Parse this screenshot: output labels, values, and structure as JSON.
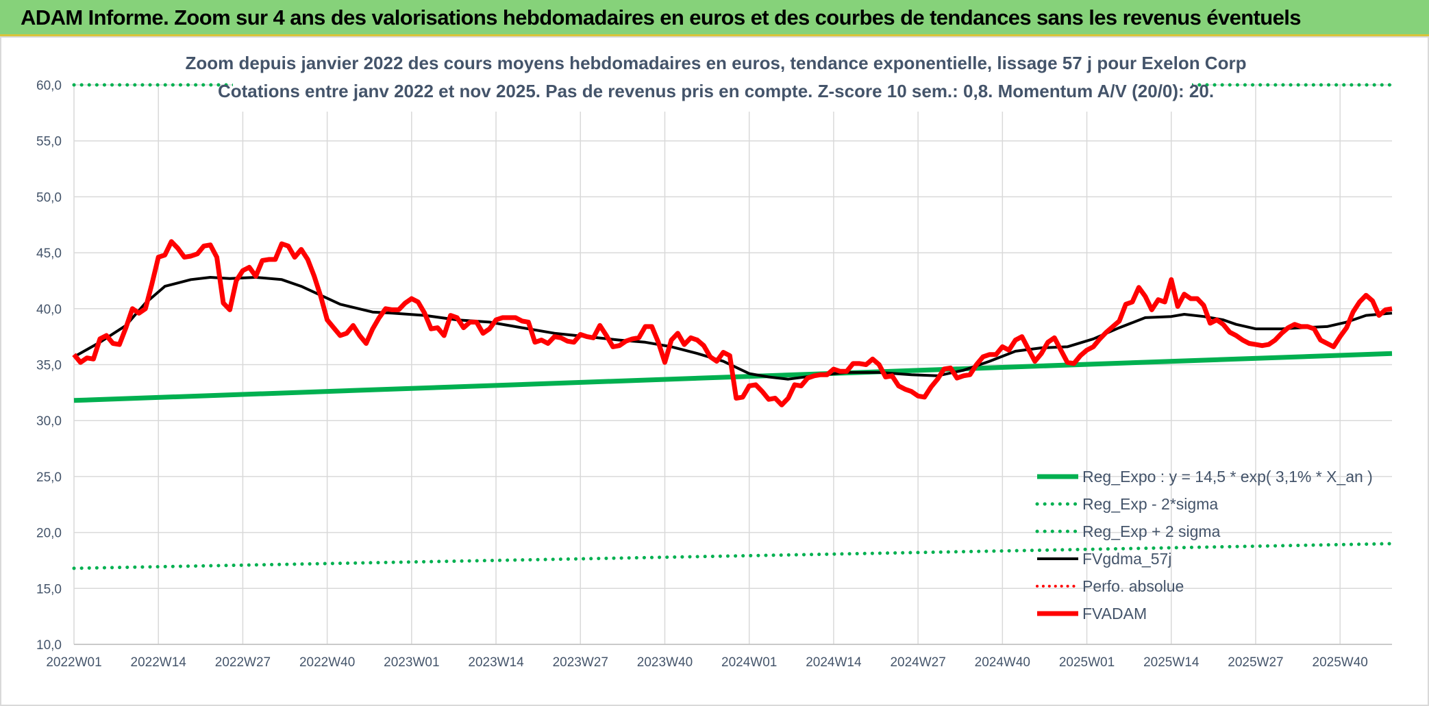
{
  "banner": {
    "title": "ADAM Informe. Zoom sur 4 ans des valorisations hebdomadaires en euros et des courbes de tendances sans les revenus éventuels",
    "bg_color": "#86d27a"
  },
  "chart_data": {
    "type": "line",
    "title": [
      "Zoom depuis janvier 2022 des cours moyens hebdomadaires en euros, tendance exponentielle, lissage 57 j pour Exelon Corp",
      "Cotations entre janv 2022 et nov 2025. Pas de revenus pris en compte. Z-score 10 sem.: 0,8. Momentum A/V (20/0): 20."
    ],
    "xlabel": "",
    "ylabel": "",
    "ylim": [
      10,
      60
    ],
    "yticks": [
      "10,0",
      "15,0",
      "20,0",
      "25,0",
      "30,0",
      "35,0",
      "40,0",
      "45,0",
      "50,0",
      "55,0",
      "60,0"
    ],
    "xlim": [
      1,
      204
    ],
    "xticks": [
      {
        "x": 1,
        "label": "2022W01"
      },
      {
        "x": 14,
        "label": "2022W14"
      },
      {
        "x": 27,
        "label": "2022W27"
      },
      {
        "x": 40,
        "label": "2022W40"
      },
      {
        "x": 53,
        "label": "2023W01"
      },
      {
        "x": 66,
        "label": "2023W14"
      },
      {
        "x": 79,
        "label": "2023W27"
      },
      {
        "x": 92,
        "label": "2023W40"
      },
      {
        "x": 105,
        "label": "2024W01"
      },
      {
        "x": 118,
        "label": "2024W14"
      },
      {
        "x": 131,
        "label": "2024W27"
      },
      {
        "x": 144,
        "label": "2024W40"
      },
      {
        "x": 157,
        "label": "2025W01"
      },
      {
        "x": 170,
        "label": "2025W14"
      },
      {
        "x": 183,
        "label": "2025W27"
      },
      {
        "x": 196,
        "label": "2025W40"
      }
    ],
    "grid": true,
    "legend_position": "bottom-right",
    "series": [
      {
        "name": "Reg_Expo : y = 14,5 * exp( 3,1% *  X_an )",
        "color": "#00b050",
        "style": "solid",
        "width": 7,
        "points": [
          [
            1,
            31.8
          ],
          [
            204,
            36.0
          ]
        ]
      },
      {
        "name": "Reg_Exp - 2*sigma",
        "color": "#00b050",
        "style": "dotted",
        "width": 5,
        "points": [
          [
            1,
            16.8
          ],
          [
            204,
            19.0
          ]
        ]
      },
      {
        "name": "Reg_Exp + 2 sigma",
        "color": "#00b050",
        "style": "dotted",
        "width": 5,
        "points": [
          [
            1,
            60.0
          ],
          [
            204,
            60.0
          ]
        ]
      },
      {
        "name": "FVgdma_57j",
        "color": "#000000",
        "style": "solid",
        "width": 4,
        "points": [
          [
            1,
            35.7
          ],
          [
            5,
            37.0
          ],
          [
            9,
            38.5
          ],
          [
            12,
            40.5
          ],
          [
            15,
            42.0
          ],
          [
            19,
            42.6
          ],
          [
            22,
            42.8
          ],
          [
            25,
            42.7
          ],
          [
            29,
            42.8
          ],
          [
            33,
            42.6
          ],
          [
            36,
            42.0
          ],
          [
            39,
            41.2
          ],
          [
            42,
            40.4
          ],
          [
            47,
            39.7
          ],
          [
            50,
            39.6
          ],
          [
            55,
            39.4
          ],
          [
            60,
            39.0
          ],
          [
            65,
            38.8
          ],
          [
            70,
            38.3
          ],
          [
            75,
            37.8
          ],
          [
            80,
            37.5
          ],
          [
            85,
            37.2
          ],
          [
            89,
            37.0
          ],
          [
            93,
            36.6
          ],
          [
            97,
            36.0
          ],
          [
            101,
            35.3
          ],
          [
            105,
            34.2
          ],
          [
            108,
            33.9
          ],
          [
            111,
            33.7
          ],
          [
            115,
            34.0
          ],
          [
            120,
            34.3
          ],
          [
            125,
            34.3
          ],
          [
            130,
            34.1
          ],
          [
            134,
            34.0
          ],
          [
            138,
            34.5
          ],
          [
            142,
            35.3
          ],
          [
            146,
            36.2
          ],
          [
            150,
            36.5
          ],
          [
            154,
            36.6
          ],
          [
            158,
            37.3
          ],
          [
            162,
            38.3
          ],
          [
            166,
            39.2
          ],
          [
            170,
            39.3
          ],
          [
            172,
            39.5
          ],
          [
            175,
            39.3
          ],
          [
            178,
            39.0
          ],
          [
            180,
            38.6
          ],
          [
            183,
            38.2
          ],
          [
            187,
            38.2
          ],
          [
            190,
            38.3
          ],
          [
            194,
            38.4
          ],
          [
            197,
            38.8
          ],
          [
            200,
            39.4
          ],
          [
            204,
            39.6
          ]
        ]
      },
      {
        "name": "Perfo. absolue",
        "color": "#ff0000",
        "style": "dotted",
        "width": 4,
        "points": []
      },
      {
        "name": "FVADAM",
        "color": "#ff0000",
        "style": "solid",
        "width": 7,
        "points": [
          [
            1,
            35.9
          ],
          [
            2,
            35.2
          ],
          [
            3,
            35.6
          ],
          [
            4,
            35.5
          ],
          [
            5,
            37.3
          ],
          [
            6,
            37.6
          ],
          [
            7,
            36.9
          ],
          [
            8,
            36.8
          ],
          [
            9,
            38.3
          ],
          [
            10,
            40.0
          ],
          [
            11,
            39.6
          ],
          [
            12,
            40.0
          ],
          [
            13,
            42.2
          ],
          [
            14,
            44.6
          ],
          [
            15,
            44.8
          ],
          [
            16,
            46.0
          ],
          [
            17,
            45.4
          ],
          [
            18,
            44.6
          ],
          [
            19,
            44.7
          ],
          [
            20,
            44.9
          ],
          [
            21,
            45.6
          ],
          [
            22,
            45.7
          ],
          [
            23,
            44.6
          ],
          [
            24,
            40.5
          ],
          [
            25,
            39.9
          ],
          [
            26,
            42.5
          ],
          [
            27,
            43.4
          ],
          [
            28,
            43.7
          ],
          [
            29,
            42.9
          ],
          [
            30,
            44.3
          ],
          [
            31,
            44.4
          ],
          [
            32,
            44.4
          ],
          [
            33,
            45.8
          ],
          [
            34,
            45.6
          ],
          [
            35,
            44.6
          ],
          [
            36,
            45.3
          ],
          [
            37,
            44.4
          ],
          [
            38,
            42.9
          ],
          [
            39,
            41.1
          ],
          [
            40,
            39.0
          ],
          [
            41,
            38.3
          ],
          [
            42,
            37.6
          ],
          [
            43,
            37.8
          ],
          [
            44,
            38.5
          ],
          [
            45,
            37.6
          ],
          [
            46,
            36.9
          ],
          [
            47,
            38.2
          ],
          [
            48,
            39.2
          ],
          [
            49,
            40.0
          ],
          [
            50,
            39.9
          ],
          [
            51,
            39.9
          ],
          [
            52,
            40.5
          ],
          [
            53,
            40.9
          ],
          [
            54,
            40.6
          ],
          [
            55,
            39.6
          ],
          [
            56,
            38.2
          ],
          [
            57,
            38.3
          ],
          [
            58,
            37.6
          ],
          [
            59,
            39.4
          ],
          [
            60,
            39.2
          ],
          [
            61,
            38.3
          ],
          [
            62,
            38.8
          ],
          [
            63,
            38.8
          ],
          [
            64,
            37.8
          ],
          [
            65,
            38.2
          ],
          [
            66,
            39.0
          ],
          [
            67,
            39.2
          ],
          [
            68,
            39.2
          ],
          [
            69,
            39.2
          ],
          [
            70,
            38.9
          ],
          [
            71,
            38.8
          ],
          [
            72,
            37.0
          ],
          [
            73,
            37.2
          ],
          [
            74,
            36.9
          ],
          [
            75,
            37.5
          ],
          [
            76,
            37.4
          ],
          [
            77,
            37.1
          ],
          [
            78,
            37.0
          ],
          [
            79,
            37.7
          ],
          [
            80,
            37.5
          ],
          [
            81,
            37.4
          ],
          [
            82,
            38.5
          ],
          [
            83,
            37.6
          ],
          [
            84,
            36.6
          ],
          [
            85,
            36.7
          ],
          [
            86,
            37.1
          ],
          [
            87,
            37.3
          ],
          [
            88,
            37.4
          ],
          [
            89,
            38.4
          ],
          [
            90,
            38.4
          ],
          [
            91,
            37.0
          ],
          [
            92,
            35.2
          ],
          [
            93,
            37.2
          ],
          [
            94,
            37.8
          ],
          [
            95,
            36.8
          ],
          [
            96,
            37.4
          ],
          [
            97,
            37.2
          ],
          [
            98,
            36.7
          ],
          [
            99,
            35.7
          ],
          [
            100,
            35.3
          ],
          [
            101,
            36.1
          ],
          [
            102,
            35.8
          ],
          [
            103,
            32.0
          ],
          [
            104,
            32.1
          ],
          [
            105,
            33.1
          ],
          [
            106,
            33.2
          ],
          [
            107,
            32.6
          ],
          [
            108,
            31.9
          ],
          [
            109,
            32.0
          ],
          [
            110,
            31.4
          ],
          [
            111,
            32.0
          ],
          [
            112,
            33.2
          ],
          [
            113,
            33.1
          ],
          [
            114,
            33.8
          ],
          [
            115,
            34.0
          ],
          [
            116,
            34.1
          ],
          [
            117,
            34.1
          ],
          [
            118,
            34.6
          ],
          [
            119,
            34.4
          ],
          [
            120,
            34.4
          ],
          [
            121,
            35.1
          ],
          [
            122,
            35.1
          ],
          [
            123,
            35.0
          ],
          [
            124,
            35.5
          ],
          [
            125,
            35.0
          ],
          [
            126,
            33.9
          ],
          [
            127,
            34.0
          ],
          [
            128,
            33.1
          ],
          [
            129,
            32.8
          ],
          [
            130,
            32.6
          ],
          [
            131,
            32.2
          ],
          [
            132,
            32.1
          ],
          [
            133,
            33.0
          ],
          [
            134,
            33.7
          ],
          [
            135,
            34.6
          ],
          [
            136,
            34.7
          ],
          [
            137,
            33.8
          ],
          [
            138,
            34.0
          ],
          [
            139,
            34.1
          ],
          [
            140,
            35.0
          ],
          [
            141,
            35.7
          ],
          [
            142,
            35.9
          ],
          [
            143,
            35.9
          ],
          [
            144,
            36.6
          ],
          [
            145,
            36.3
          ],
          [
            146,
            37.2
          ],
          [
            147,
            37.5
          ],
          [
            148,
            36.4
          ],
          [
            149,
            35.3
          ],
          [
            150,
            36.0
          ],
          [
            151,
            37.0
          ],
          [
            152,
            37.4
          ],
          [
            153,
            36.3
          ],
          [
            154,
            35.2
          ],
          [
            155,
            35.1
          ],
          [
            156,
            35.8
          ],
          [
            157,
            36.3
          ],
          [
            158,
            36.6
          ],
          [
            159,
            37.3
          ],
          [
            160,
            37.9
          ],
          [
            161,
            38.4
          ],
          [
            162,
            38.9
          ],
          [
            163,
            40.4
          ],
          [
            164,
            40.6
          ],
          [
            165,
            41.9
          ],
          [
            166,
            41.1
          ],
          [
            167,
            39.9
          ],
          [
            168,
            40.8
          ],
          [
            169,
            40.6
          ],
          [
            170,
            42.6
          ],
          [
            171,
            40.2
          ],
          [
            172,
            41.3
          ],
          [
            173,
            40.9
          ],
          [
            174,
            40.9
          ],
          [
            175,
            40.3
          ],
          [
            176,
            38.7
          ],
          [
            177,
            39.0
          ],
          [
            178,
            38.6
          ],
          [
            179,
            37.9
          ],
          [
            180,
            37.6
          ],
          [
            181,
            37.2
          ],
          [
            182,
            36.9
          ],
          [
            183,
            36.8
          ],
          [
            184,
            36.7
          ],
          [
            185,
            36.8
          ],
          [
            186,
            37.2
          ],
          [
            187,
            37.8
          ],
          [
            188,
            38.3
          ],
          [
            189,
            38.6
          ],
          [
            190,
            38.4
          ],
          [
            191,
            38.4
          ],
          [
            192,
            38.2
          ],
          [
            193,
            37.2
          ],
          [
            194,
            36.9
          ],
          [
            195,
            36.6
          ],
          [
            196,
            37.5
          ],
          [
            197,
            38.3
          ],
          [
            198,
            39.7
          ],
          [
            199,
            40.6
          ],
          [
            200,
            41.2
          ],
          [
            201,
            40.7
          ],
          [
            202,
            39.4
          ],
          [
            203,
            39.9
          ],
          [
            204,
            40.0
          ]
        ]
      }
    ]
  }
}
